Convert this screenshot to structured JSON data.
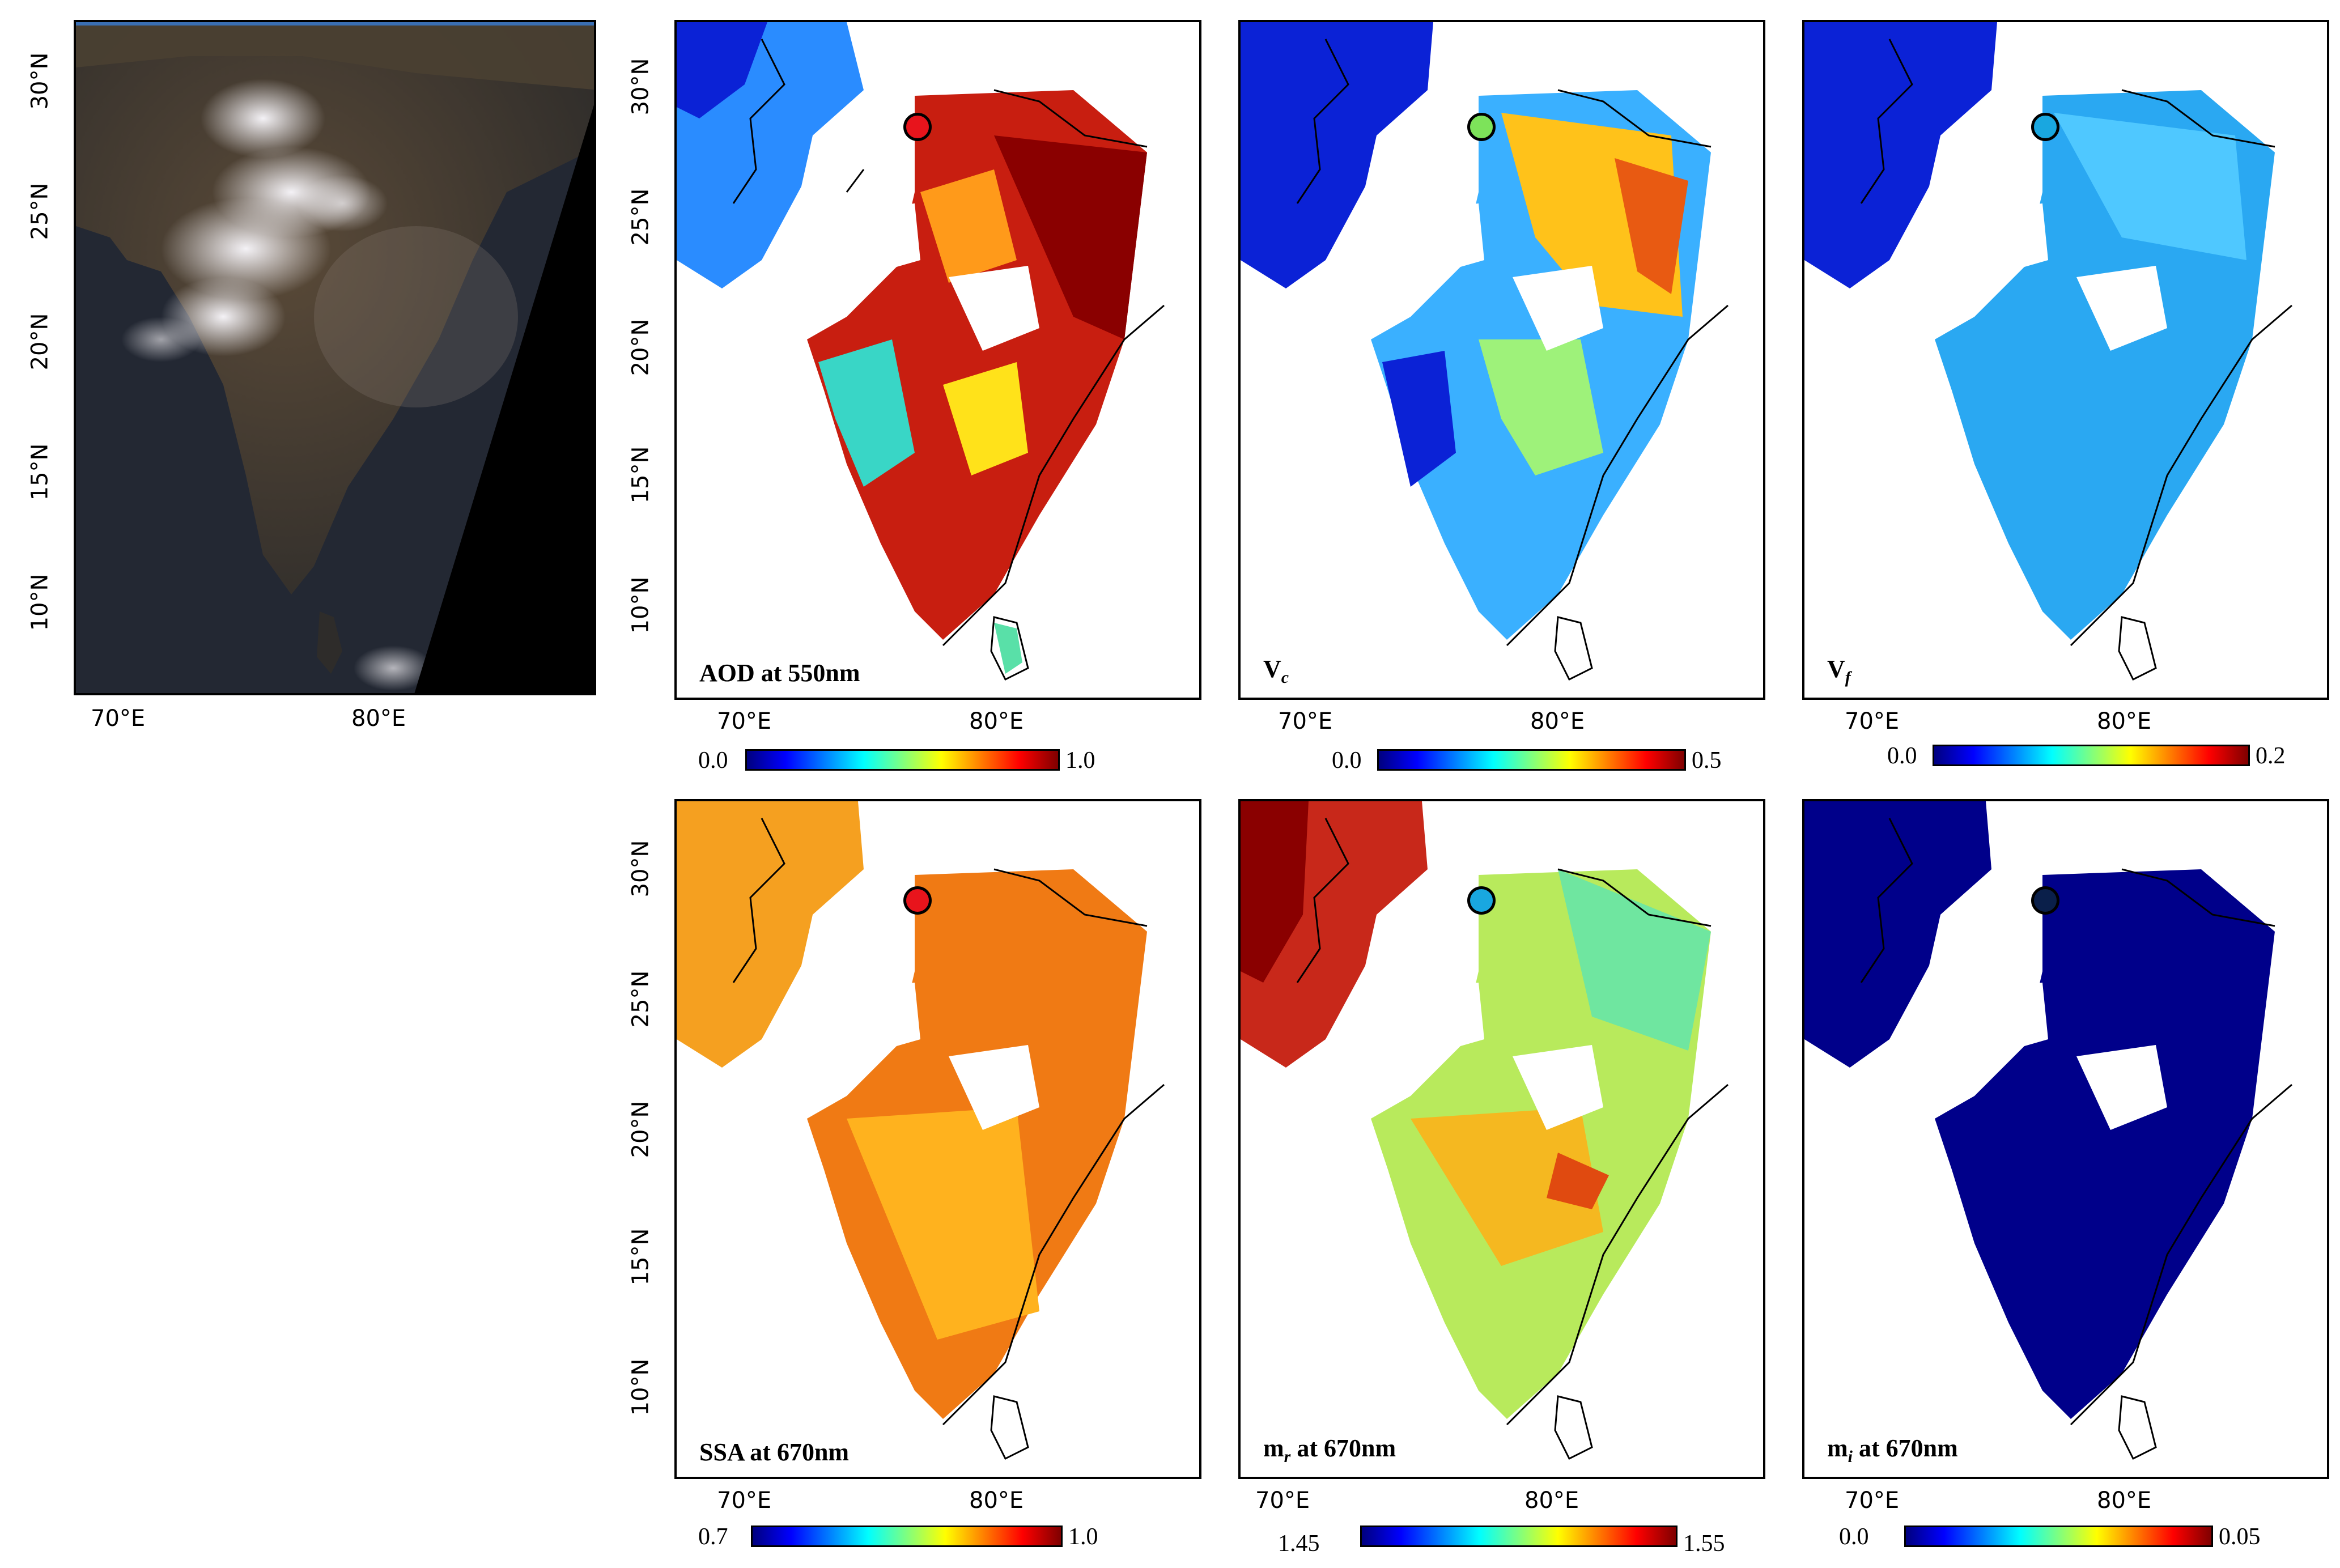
{
  "axes": {
    "lon_labels": [
      "70°E",
      "80°E"
    ],
    "lat_labels": [
      "30°N",
      "25°N",
      "20°N",
      "15°N",
      "10°N"
    ]
  },
  "satellite_image": {
    "description_name": "true-color-satellite"
  },
  "panels": [
    {
      "title": "AOD at 550nm",
      "title_main": "AOD at 550nm",
      "colorbar": {
        "min": "0.0",
        "max": "1.0"
      },
      "marker_color": "#e8141c"
    },
    {
      "title_main": "V",
      "title_sub": "c",
      "colorbar": {
        "min": "0.0",
        "max": "0.5"
      },
      "marker_color": "#7de35a"
    },
    {
      "title_main": "V",
      "title_sub": "f",
      "colorbar": {
        "min": "0.0",
        "max": "0.2"
      },
      "marker_color": "#19a7e0"
    },
    {
      "title_main": "SSA at 670nm",
      "colorbar": {
        "min": "0.7",
        "max": "1.0"
      },
      "marker_color": "#e8141c"
    },
    {
      "title_main": "m",
      "title_sub": "r",
      "title_rest": " at 670nm",
      "colorbar": {
        "min": "1.45",
        "max": "1.55"
      },
      "marker_color": "#19a7e0"
    },
    {
      "title_main": "m",
      "title_sub": "i",
      "title_rest": " at 670nm",
      "colorbar": {
        "min": "0.0",
        "max": "0.05"
      },
      "marker_color": "#0a1f4a"
    }
  ],
  "colors": {
    "colormap": "jet",
    "land_outline": "#000000",
    "no_data": "#ffffff"
  }
}
